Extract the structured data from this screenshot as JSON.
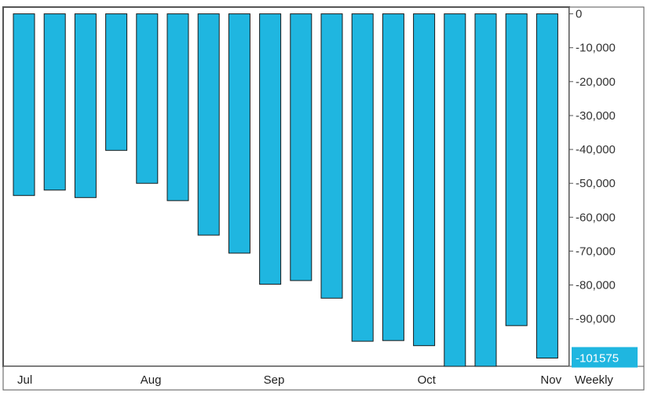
{
  "chart_data": {
    "type": "bar",
    "title": "",
    "xlabel": "",
    "ylabel": "",
    "frequency_label": "Weekly",
    "x_labels": [
      "Jul",
      "Aug",
      "Sep",
      "Oct",
      "Nov"
    ],
    "x_label_bar_index": [
      0,
      4,
      8,
      13,
      17
    ],
    "ylim": [
      -104000,
      2000
    ],
    "yticks": [
      0,
      -10000,
      -20000,
      -30000,
      -40000,
      -50000,
      -60000,
      -70000,
      -80000,
      -90000
    ],
    "ytick_labels": [
      "0",
      "-10,000",
      "-20,000",
      "-30,000",
      "-40,000",
      "-50,000",
      "-60,000",
      "-70,000",
      "-80,000",
      "-90,000"
    ],
    "values": [
      -53600,
      -52000,
      -54200,
      -40300,
      -50000,
      -55100,
      -65300,
      -70600,
      -79800,
      -78700,
      -83900,
      -96600,
      -96400,
      -97900,
      -104000,
      -104000,
      -92000,
      -101575
    ],
    "last_value_label": "-101575",
    "grid": false,
    "legend": "none",
    "colors": {
      "bar_fill": "#1fb6e0",
      "bar_stroke": "#1a1a1a",
      "last_value_bg": "#1fb6e0",
      "axis": "#555555",
      "text": "#333333"
    }
  }
}
